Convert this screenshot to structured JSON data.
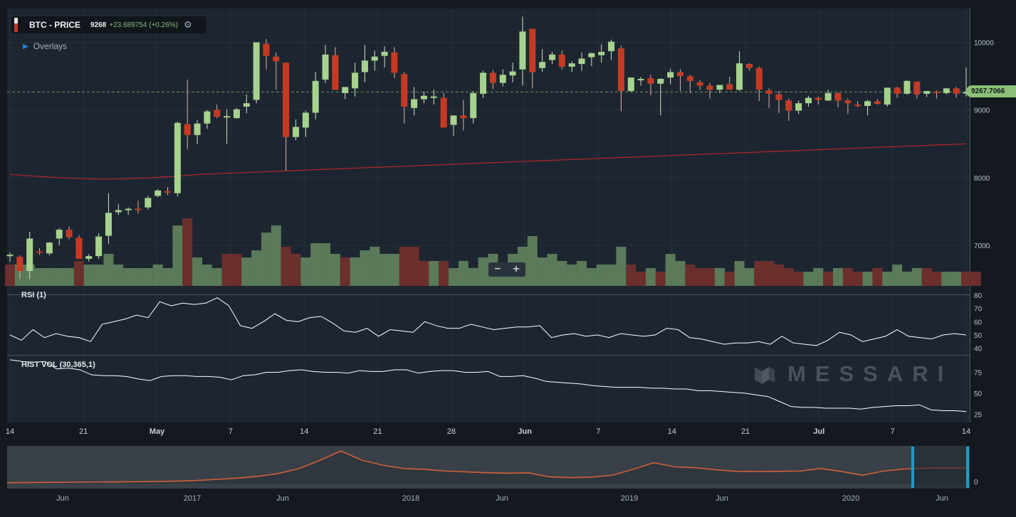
{
  "header": {
    "symbol": "BTC - PRICE",
    "last": "9268",
    "change": "+23.689754 (+0.26%)",
    "overlays_label": "Overlays",
    "current_price_tag": "9267.7066"
  },
  "panels": {
    "rsi_label": "RSI (1)",
    "hv_label": "HIST VOL (30,365,1)"
  },
  "watermark": "MESSARI",
  "zoom": {
    "minus": "−",
    "plus": "+"
  },
  "colors": {
    "up": "#a6d28e",
    "down": "#c63a24",
    "vol_up": "#5a7a5a",
    "vol_down": "#6b2f2d",
    "ma": "#b4242a",
    "bg": "#1d2630"
  },
  "chart_data": [
    {
      "type": "candlestick",
      "title": "BTC - PRICE",
      "x_tick_labels": [
        "14",
        "21",
        "May",
        "7",
        "14",
        "21",
        "28",
        "Jun",
        "7",
        "14",
        "21",
        "Jul",
        "7",
        "14"
      ],
      "y_tick_labels": [
        "7000",
        "8000",
        "9000",
        "10000"
      ],
      "ylim": [
        6400,
        10500
      ],
      "current_price": 9267.7066,
      "ohlc": [
        [
          6858,
          6895,
          6760,
          6860
        ],
        [
          6830,
          6850,
          6500,
          6620
        ],
        [
          6620,
          7200,
          6500,
          7100
        ],
        [
          6910,
          6960,
          6860,
          6890
        ],
        [
          6880,
          7050,
          6850,
          7040
        ],
        [
          7100,
          7250,
          7000,
          7230
        ],
        [
          7230,
          7280,
          7090,
          7120
        ],
        [
          7110,
          7150,
          6800,
          6800
        ],
        [
          6800,
          6870,
          6760,
          6840
        ],
        [
          6840,
          7180,
          6800,
          7130
        ],
        [
          7140,
          7770,
          7020,
          7480
        ],
        [
          7490,
          7610,
          7450,
          7520
        ],
        [
          7520,
          7560,
          7450,
          7540
        ],
        [
          7540,
          7660,
          7470,
          7520
        ],
        [
          7560,
          7730,
          7530,
          7700
        ],
        [
          7730,
          7830,
          7710,
          7810
        ],
        [
          7800,
          7860,
          7740,
          7780
        ],
        [
          7770,
          8830,
          7720,
          8810
        ],
        [
          8790,
          9450,
          8420,
          8630
        ],
        [
          8630,
          8850,
          8500,
          8800
        ],
        [
          8800,
          9000,
          8720,
          8980
        ],
        [
          9000,
          9080,
          8880,
          8900
        ],
        [
          8910,
          9010,
          8500,
          8910
        ],
        [
          8880,
          9030,
          8870,
          9010
        ],
        [
          9050,
          9230,
          8950,
          9100
        ],
        [
          9150,
          10000,
          9100,
          10000
        ],
        [
          9980,
          10050,
          9600,
          9800
        ],
        [
          9790,
          9850,
          9300,
          9720
        ],
        [
          9700,
          9700,
          8100,
          8600
        ],
        [
          8600,
          8860,
          8550,
          8750
        ],
        [
          8740,
          8990,
          8600,
          8960
        ],
        [
          8960,
          9560,
          8860,
          9430
        ],
        [
          9450,
          9960,
          9400,
          9820
        ],
        [
          9810,
          9930,
          9300,
          9300
        ],
        [
          9250,
          9320,
          9160,
          9340
        ],
        [
          9320,
          9700,
          9200,
          9550
        ],
        [
          9560,
          9960,
          9410,
          9730
        ],
        [
          9730,
          9880,
          9580,
          9790
        ],
        [
          9800,
          9940,
          9630,
          9860
        ],
        [
          9850,
          9930,
          9470,
          9550
        ],
        [
          9530,
          9560,
          8800,
          9050
        ],
        [
          9030,
          9340,
          8920,
          9160
        ],
        [
          9160,
          9270,
          9100,
          9210
        ],
        [
          9200,
          9300,
          9080,
          9200
        ],
        [
          9180,
          9250,
          8750,
          8740
        ],
        [
          8780,
          8880,
          8620,
          8920
        ],
        [
          8920,
          9150,
          8700,
          8880
        ],
        [
          8880,
          9280,
          8800,
          9250
        ],
        [
          9240,
          9580,
          9180,
          9550
        ],
        [
          9550,
          9590,
          9310,
          9400
        ],
        [
          9400,
          9600,
          9350,
          9520
        ],
        [
          9510,
          9700,
          9410,
          9570
        ],
        [
          9600,
          10380,
          9360,
          10160
        ],
        [
          10200,
          10200,
          9320,
          9560
        ],
        [
          9620,
          9900,
          9560,
          9710
        ],
        [
          9740,
          9860,
          9680,
          9820
        ],
        [
          9820,
          9880,
          9600,
          9640
        ],
        [
          9640,
          9720,
          9560,
          9690
        ],
        [
          9680,
          9850,
          9580,
          9760
        ],
        [
          9780,
          9850,
          9650,
          9840
        ],
        [
          9810,
          9970,
          9700,
          9860
        ],
        [
          9870,
          10040,
          9740,
          10010
        ],
        [
          9910,
          9950,
          8980,
          9280
        ],
        [
          9280,
          9480,
          9270,
          9480
        ],
        [
          9450,
          9490,
          9360,
          9460
        ],
        [
          9470,
          9520,
          9220,
          9390
        ],
        [
          9390,
          9470,
          8920,
          9460
        ],
        [
          9480,
          9610,
          9380,
          9560
        ],
        [
          9560,
          9600,
          9280,
          9500
        ],
        [
          9500,
          9520,
          9250,
          9430
        ],
        [
          9410,
          9440,
          9300,
          9360
        ],
        [
          9360,
          9400,
          9170,
          9300
        ],
        [
          9300,
          9350,
          9250,
          9370
        ],
        [
          9380,
          9490,
          9330,
          9300
        ],
        [
          9300,
          9870,
          9280,
          9690
        ],
        [
          9680,
          9690,
          9580,
          9620
        ],
        [
          9620,
          9640,
          9130,
          9300
        ],
        [
          9290,
          9320,
          9030,
          9240
        ],
        [
          9230,
          9280,
          8950,
          9150
        ],
        [
          9140,
          9170,
          8840,
          8990
        ],
        [
          8990,
          9140,
          8940,
          9100
        ],
        [
          9100,
          9210,
          9050,
          9180
        ],
        [
          9180,
          9200,
          9080,
          9150
        ],
        [
          9140,
          9300,
          9140,
          9250
        ],
        [
          9250,
          9260,
          9040,
          9140
        ],
        [
          9140,
          9170,
          8940,
          9100
        ],
        [
          9080,
          9130,
          9040,
          9070
        ],
        [
          9060,
          9150,
          8920,
          9130
        ],
        [
          9130,
          9160,
          9080,
          9090
        ],
        [
          9080,
          9330,
          9050,
          9330
        ],
        [
          9330,
          9340,
          9180,
          9240
        ],
        [
          9240,
          9440,
          9230,
          9430
        ],
        [
          9420,
          9420,
          9170,
          9230
        ],
        [
          9240,
          9280,
          9190,
          9280
        ],
        [
          9270,
          9290,
          9170,
          9260
        ],
        [
          9250,
          9320,
          9230,
          9320
        ],
        [
          9320,
          9340,
          9180,
          9240
        ],
        [
          9244,
          9630,
          9200,
          9268
        ]
      ],
      "volume": [
        [
          6,
          1
        ],
        [
          6,
          0
        ],
        [
          6,
          0
        ],
        [
          5,
          0
        ],
        [
          5,
          0
        ],
        [
          5,
          0
        ],
        [
          5,
          0
        ],
        [
          7,
          1
        ],
        [
          6,
          0
        ],
        [
          6,
          0
        ],
        [
          9,
          0
        ],
        [
          6,
          0
        ],
        [
          5,
          0
        ],
        [
          5,
          0
        ],
        [
          5,
          0
        ],
        [
          6,
          0
        ],
        [
          5,
          0
        ],
        [
          17,
          0
        ],
        [
          19,
          1
        ],
        [
          8,
          0
        ],
        [
          6,
          0
        ],
        [
          5,
          0
        ],
        [
          9,
          1
        ],
        [
          9,
          1
        ],
        [
          8,
          0
        ],
        [
          10,
          0
        ],
        [
          15,
          0
        ],
        [
          17,
          0
        ],
        [
          11,
          1
        ],
        [
          9,
          1
        ],
        [
          8,
          0
        ],
        [
          12,
          0
        ],
        [
          12,
          0
        ],
        [
          9,
          0
        ],
        [
          8,
          1
        ],
        [
          8,
          0
        ],
        [
          10,
          0
        ],
        [
          11,
          0
        ],
        [
          9,
          0
        ],
        [
          9,
          0
        ],
        [
          11,
          1
        ],
        [
          11,
          1
        ],
        [
          7,
          1
        ],
        [
          7,
          0
        ],
        [
          7,
          1
        ],
        [
          5,
          0
        ],
        [
          7,
          0
        ],
        [
          5,
          0
        ],
        [
          8,
          0
        ],
        [
          9,
          0
        ],
        [
          4,
          0
        ],
        [
          9,
          0
        ],
        [
          11,
          0
        ],
        [
          14,
          0
        ],
        [
          8,
          0
        ],
        [
          9,
          0
        ],
        [
          7,
          0
        ],
        [
          6,
          0
        ],
        [
          7,
          0
        ],
        [
          5,
          0
        ],
        [
          6,
          0
        ],
        [
          6,
          0
        ],
        [
          11,
          0
        ],
        [
          6,
          1
        ],
        [
          4,
          1
        ],
        [
          5,
          0
        ],
        [
          4,
          1
        ],
        [
          9,
          0
        ],
        [
          7,
          0
        ],
        [
          6,
          1
        ],
        [
          5,
          1
        ],
        [
          5,
          1
        ],
        [
          5,
          0
        ],
        [
          4,
          1
        ],
        [
          7,
          0
        ],
        [
          5,
          0
        ],
        [
          7,
          1
        ],
        [
          7,
          1
        ],
        [
          6,
          1
        ],
        [
          5,
          1
        ],
        [
          4,
          1
        ],
        [
          4,
          0
        ],
        [
          5,
          0
        ],
        [
          4,
          1
        ],
        [
          5,
          0
        ],
        [
          5,
          1
        ],
        [
          4,
          1
        ],
        [
          4,
          0
        ],
        [
          5,
          1
        ],
        [
          4,
          0
        ],
        [
          6,
          0
        ],
        [
          4,
          0
        ],
        [
          5,
          0
        ],
        [
          5,
          1
        ],
        [
          4,
          1
        ],
        [
          4,
          0
        ],
        [
          4,
          0
        ],
        [
          4,
          1
        ],
        [
          4,
          1
        ]
      ],
      "moving_average_start": 8050,
      "moving_average_end": 8500
    },
    {
      "type": "line",
      "title": "RSI (1)",
      "y_tick_labels": [
        "40",
        "50",
        "60",
        "70",
        "80"
      ],
      "ylim": [
        35,
        80
      ],
      "values": [
        50,
        46,
        54,
        48,
        51,
        49,
        48,
        45,
        58,
        60,
        62,
        65,
        63,
        75,
        72,
        74,
        73,
        74,
        78,
        72,
        57,
        55,
        60,
        66,
        61,
        60,
        63,
        64,
        59,
        53,
        52,
        55,
        49,
        54,
        53,
        52,
        60,
        57,
        55,
        55,
        58,
        56,
        54,
        55,
        56,
        56,
        57,
        48,
        50,
        51,
        49,
        50,
        48,
        51,
        50,
        49,
        50,
        55,
        54,
        48,
        47,
        45,
        43,
        44,
        44,
        45,
        43,
        49,
        44,
        43,
        42,
        46,
        52,
        50,
        45,
        47,
        49,
        54,
        49,
        48,
        47,
        50,
        51,
        50
      ],
      "y_axis_extra": "80"
    },
    {
      "type": "line",
      "title": "HIST VOL (30,365,1)",
      "y_tick_labels": [
        "25",
        "50",
        "75"
      ],
      "ylim": [
        15,
        95
      ],
      "values": [
        90,
        88,
        87,
        88,
        79,
        80,
        78,
        72,
        71,
        71,
        70,
        67,
        65,
        70,
        71,
        71,
        70,
        70,
        69,
        66,
        71,
        72,
        75,
        75,
        77,
        78,
        76,
        75,
        75,
        74,
        77,
        76,
        76,
        78,
        78,
        74,
        76,
        77,
        77,
        75,
        75,
        76,
        70,
        70,
        71,
        68,
        64,
        63,
        62,
        61,
        59,
        58,
        57,
        57,
        57,
        56,
        56,
        55,
        55,
        53,
        53,
        52,
        51,
        50,
        48,
        46,
        40,
        34,
        33,
        33,
        32,
        32,
        32,
        31,
        33,
        34,
        35,
        35,
        36,
        30,
        29,
        29,
        28
      ]
    },
    {
      "type": "area",
      "title": "navigator",
      "x_tick_labels": [
        "Jun",
        "2017",
        "Jun",
        "2018",
        "Jun",
        "2019",
        "Jun",
        "2020",
        "Jun"
      ],
      "y_tick_labels": [
        "0"
      ],
      "ylim": [
        0,
        20000
      ],
      "values": [
        500,
        600,
        700,
        800,
        900,
        1000,
        1100,
        1200,
        1400,
        1800,
        2500,
        3200,
        4300,
        6000,
        9000,
        14000,
        19500,
        14000,
        11000,
        9000,
        8500,
        7500,
        7000,
        6500,
        6200,
        6400,
        4000,
        3600,
        3800,
        5000,
        8500,
        12500,
        10000,
        9500,
        8200,
        7300,
        7200,
        7300,
        7500,
        9000,
        7200,
        5000,
        7500,
        8700,
        9200,
        9300,
        9250
      ]
    }
  ]
}
